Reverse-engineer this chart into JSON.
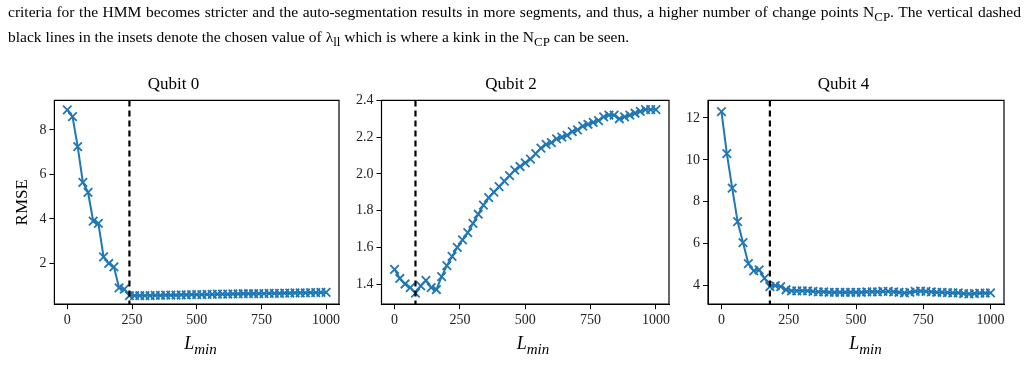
{
  "chart_data": [
    {
      "type": "line",
      "title": "Qubit 0",
      "xlabel": "L$_{min}$",
      "ylabel": "RMSE",
      "marker": "cross",
      "grid": false,
      "legend": false,
      "annotations": [
        "criteria for the HMM becomes stricter and the auto-segmentation results in more segments, and thus, a higher number of change points N$_{CP}$. The vertical dashed black lines in the insets denote the chosen value of λ$_{ll}$ which is where a kink in the N$_{CP}$ can be seen."
      ],
      "xlim": [
        -50,
        1050
      ],
      "xticks": [
        0,
        250,
        500,
        750,
        1000
      ],
      "ylim": [
        0.17,
        9.33
      ],
      "yticks": [
        2,
        4,
        6,
        8
      ],
      "ref_lines": [
        {
          "axis": "x",
          "value": 240,
          "color": "#000000",
          "line_style": "dashed"
        }
      ],
      "x": [
        0,
        20,
        40,
        60,
        80,
        100,
        120,
        140,
        160,
        180,
        200,
        220,
        240,
        260,
        280,
        300,
        320,
        340,
        360,
        380,
        400,
        420,
        440,
        460,
        480,
        500,
        520,
        540,
        560,
        580,
        600,
        620,
        640,
        660,
        680,
        700,
        720,
        740,
        760,
        780,
        800,
        820,
        840,
        860,
        880,
        900,
        920,
        940,
        960,
        980,
        1000
      ],
      "series": [
        {
          "color": "#1f77b4",
          "values": [
            8.9,
            8.6,
            7.25,
            5.65,
            5.2,
            3.9,
            3.8,
            2.3,
            2.0,
            1.85,
            0.9,
            0.85,
            0.55,
            0.55,
            0.55,
            0.56,
            0.56,
            0.57,
            0.57,
            0.58,
            0.58,
            0.58,
            0.59,
            0.59,
            0.6,
            0.6,
            0.6,
            0.61,
            0.61,
            0.62,
            0.62,
            0.62,
            0.63,
            0.63,
            0.64,
            0.64,
            0.64,
            0.65,
            0.65,
            0.66,
            0.66,
            0.66,
            0.67,
            0.67,
            0.68,
            0.68,
            0.68,
            0.69,
            0.69,
            0.7,
            0.7
          ]
        }
      ]
    },
    {
      "type": "line",
      "title": "Qubit 2",
      "xlabel": "L$_{min}$",
      "marker": "cross",
      "grid": false,
      "legend": false,
      "xlim": [
        -50,
        1050
      ],
      "xticks": [
        0,
        250,
        500,
        750,
        1000
      ],
      "ylim": [
        1.29,
        2.4
      ],
      "yticks": [
        1.4,
        1.6,
        1.8,
        {
          "value": 2,
          "label": "2.0"
        },
        2.2,
        2.4
      ],
      "ref_lines": [
        {
          "axis": "x",
          "value": 80,
          "color": "#000000",
          "line_style": "dashed"
        }
      ],
      "x": [
        0,
        20,
        40,
        60,
        80,
        100,
        120,
        140,
        160,
        180,
        200,
        220,
        240,
        260,
        280,
        300,
        320,
        340,
        360,
        380,
        400,
        420,
        440,
        460,
        480,
        500,
        520,
        540,
        560,
        580,
        600,
        620,
        640,
        660,
        680,
        700,
        720,
        740,
        760,
        780,
        800,
        820,
        840,
        860,
        880,
        900,
        920,
        940,
        960,
        980,
        1000
      ],
      "series": [
        {
          "color": "#1f77b4",
          "values": [
            1.48,
            1.43,
            1.4,
            1.38,
            1.35,
            1.39,
            1.42,
            1.38,
            1.37,
            1.44,
            1.5,
            1.55,
            1.6,
            1.64,
            1.68,
            1.73,
            1.78,
            1.83,
            1.87,
            1.9,
            1.93,
            1.96,
            1.99,
            2.02,
            2.04,
            2.06,
            2.08,
            2.11,
            2.14,
            2.16,
            2.17,
            2.19,
            2.2,
            2.21,
            2.23,
            2.24,
            2.26,
            2.27,
            2.28,
            2.29,
            2.31,
            2.32,
            2.32,
            2.3,
            2.31,
            2.32,
            2.33,
            2.34,
            2.35,
            2.35,
            2.35
          ]
        }
      ]
    },
    {
      "type": "line",
      "title": "Qubit 4",
      "xlabel": "L$_{min}$",
      "marker": "cross",
      "grid": false,
      "legend": false,
      "xlim": [
        -50,
        1050
      ],
      "xticks": [
        0,
        250,
        500,
        750,
        1000
      ],
      "ylim": [
        3.11,
        12.84
      ],
      "yticks": [
        4,
        6,
        8,
        10,
        12
      ],
      "ref_lines": [
        {
          "axis": "x",
          "value": 180,
          "color": "#000000",
          "line_style": "dashed"
        }
      ],
      "x": [
        0,
        20,
        40,
        60,
        80,
        100,
        120,
        140,
        160,
        180,
        200,
        220,
        240,
        260,
        280,
        300,
        320,
        340,
        360,
        380,
        400,
        420,
        440,
        460,
        480,
        500,
        520,
        540,
        560,
        580,
        600,
        620,
        640,
        660,
        680,
        700,
        720,
        740,
        760,
        780,
        800,
        820,
        840,
        860,
        880,
        900,
        920,
        940,
        960,
        980,
        1000
      ],
      "series": [
        {
          "color": "#1f77b4",
          "values": [
            12.3,
            10.3,
            8.65,
            7.05,
            6.05,
            5.05,
            4.7,
            4.75,
            4.35,
            3.95,
            4.0,
            3.95,
            3.8,
            3.75,
            3.75,
            3.75,
            3.75,
            3.72,
            3.7,
            3.7,
            3.68,
            3.68,
            3.68,
            3.68,
            3.68,
            3.68,
            3.68,
            3.7,
            3.7,
            3.7,
            3.72,
            3.72,
            3.7,
            3.68,
            3.65,
            3.68,
            3.72,
            3.74,
            3.72,
            3.7,
            3.68,
            3.68,
            3.66,
            3.65,
            3.65,
            3.62,
            3.6,
            3.62,
            3.64,
            3.64,
            3.65
          ]
        }
      ]
    }
  ]
}
